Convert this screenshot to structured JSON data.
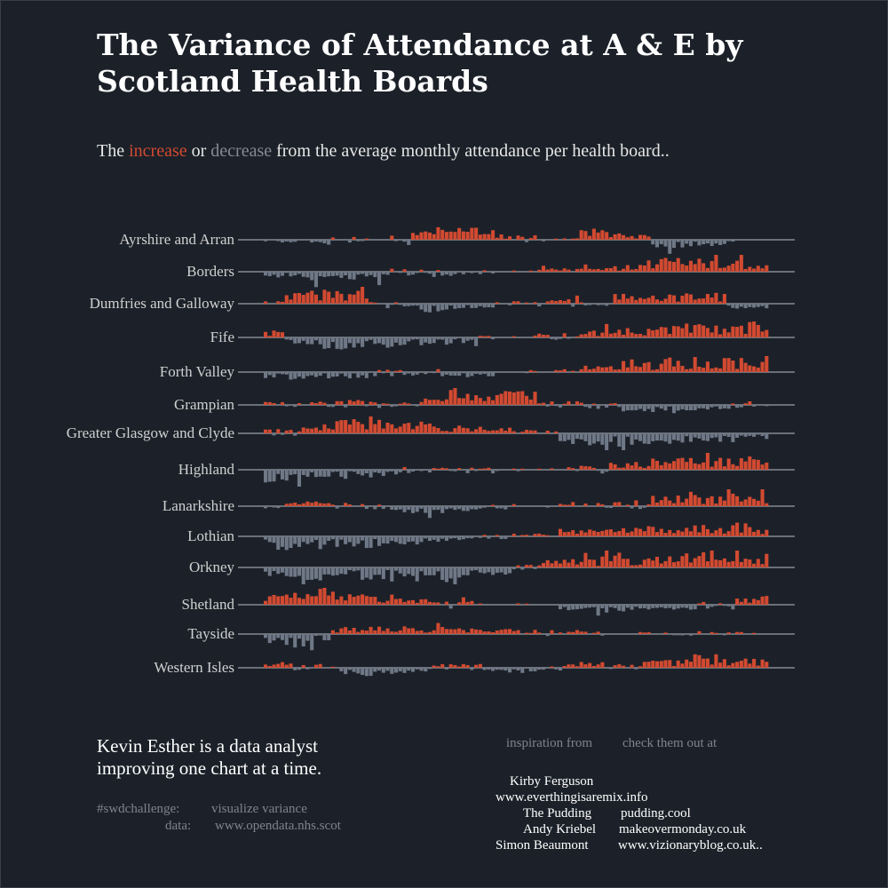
{
  "title": "The Variance of Attendance at A & E by\nScotland  Health Boards",
  "subtitle": {
    "pre": "The ",
    "increase": "increase",
    "mid": " or ",
    "decrease": "decrease",
    "post": " from the average monthly attendance per health board.."
  },
  "colors": {
    "background": "#1c2129",
    "increase": "#d24a31",
    "decrease": "#6f7886",
    "baseline": "#9aa0a8",
    "label": "#d0d0d0"
  },
  "chart_data": {
    "type": "bar",
    "layout": "small-multiples",
    "months": 120,
    "series": [
      {
        "name": "Ayrshire and Arran",
        "segments": [
          [
            10,
            -0.2
          ],
          [
            18,
            -0.35
          ],
          [
            25,
            -0.2
          ],
          [
            30,
            -0.05
          ],
          [
            36,
            0.35
          ],
          [
            55,
            0.9
          ],
          [
            65,
            0.35
          ],
          [
            75,
            0.2
          ],
          [
            82,
            0.8
          ],
          [
            92,
            0.45
          ],
          [
            102,
            -0.7
          ],
          [
            112,
            -0.45
          ],
          [
            120,
            0.05
          ]
        ]
      },
      {
        "name": "Borders",
        "segments": [
          [
            8,
            -0.45
          ],
          [
            20,
            -0.8
          ],
          [
            30,
            -0.55
          ],
          [
            45,
            -0.3
          ],
          [
            55,
            -0.2
          ],
          [
            65,
            0.1
          ],
          [
            80,
            0.3
          ],
          [
            88,
            0.4
          ],
          [
            95,
            1.0
          ],
          [
            110,
            1.2
          ],
          [
            120,
            0.8
          ]
        ]
      },
      {
        "name": "Dumfries and Galloway",
        "segments": [
          [
            5,
            0.25
          ],
          [
            18,
            0.95
          ],
          [
            25,
            0.75
          ],
          [
            35,
            -0.2
          ],
          [
            45,
            -0.7
          ],
          [
            55,
            -0.4
          ],
          [
            65,
            0.2
          ],
          [
            75,
            0.35
          ],
          [
            83,
            -0.15
          ],
          [
            92,
            0.7
          ],
          [
            110,
            0.8
          ],
          [
            120,
            -0.45
          ]
        ]
      },
      {
        "name": "Fife",
        "segments": [
          [
            5,
            0.55
          ],
          [
            12,
            -0.55
          ],
          [
            25,
            -0.95
          ],
          [
            35,
            -0.8
          ],
          [
            45,
            -0.55
          ],
          [
            55,
            -0.35
          ],
          [
            65,
            0.15
          ],
          [
            75,
            0.3
          ],
          [
            85,
            0.6
          ],
          [
            95,
            0.8
          ],
          [
            110,
            1.0
          ],
          [
            120,
            1.2
          ]
        ]
      },
      {
        "name": "Forth Valley",
        "segments": [
          [
            10,
            -0.55
          ],
          [
            25,
            -0.45
          ],
          [
            35,
            -0.3
          ],
          [
            45,
            -0.35
          ],
          [
            55,
            -0.4
          ],
          [
            62,
            0.05
          ],
          [
            75,
            0.15
          ],
          [
            85,
            0.45
          ],
          [
            95,
            0.8
          ],
          [
            110,
            1.1
          ],
          [
            120,
            1.2
          ]
        ]
      },
      {
        "name": "Grampian",
        "segments": [
          [
            10,
            0.25
          ],
          [
            20,
            0.3
          ],
          [
            30,
            0.35
          ],
          [
            38,
            0.25
          ],
          [
            45,
            0.6
          ],
          [
            55,
            0.8
          ],
          [
            65,
            1.0
          ],
          [
            75,
            0.3
          ],
          [
            85,
            -0.3
          ],
          [
            95,
            -0.55
          ],
          [
            110,
            -0.5
          ],
          [
            120,
            -0.3
          ]
        ]
      },
      {
        "name": "Greater Glasgow and Clyde",
        "segments": [
          [
            8,
            0.3
          ],
          [
            18,
            0.6
          ],
          [
            30,
            1.0
          ],
          [
            40,
            0.85
          ],
          [
            50,
            0.5
          ],
          [
            60,
            0.4
          ],
          [
            70,
            0.25
          ],
          [
            80,
            -0.9
          ],
          [
            90,
            -1.1
          ],
          [
            100,
            -0.85
          ],
          [
            110,
            -0.6
          ],
          [
            120,
            -0.4
          ]
        ]
      },
      {
        "name": "Highland",
        "segments": [
          [
            10,
            -0.95
          ],
          [
            20,
            -0.65
          ],
          [
            30,
            -0.55
          ],
          [
            42,
            -0.35
          ],
          [
            55,
            -0.25
          ],
          [
            65,
            -0.15
          ],
          [
            72,
            0.1
          ],
          [
            82,
            0.3
          ],
          [
            92,
            0.55
          ],
          [
            105,
            0.85
          ],
          [
            120,
            1.0
          ]
        ]
      },
      {
        "name": "Lanarkshire",
        "segments": [
          [
            10,
            0.25
          ],
          [
            20,
            0.35
          ],
          [
            30,
            -0.25
          ],
          [
            40,
            -0.55
          ],
          [
            50,
            -0.4
          ],
          [
            60,
            -0.25
          ],
          [
            70,
            -0.1
          ],
          [
            80,
            0.2
          ],
          [
            92,
            0.35
          ],
          [
            105,
            0.8
          ],
          [
            120,
            0.9
          ]
        ]
      },
      {
        "name": "Lothian",
        "segments": [
          [
            8,
            -1.0
          ],
          [
            18,
            -1.05
          ],
          [
            28,
            -0.85
          ],
          [
            38,
            -0.65
          ],
          [
            48,
            -0.45
          ],
          [
            58,
            -0.2
          ],
          [
            70,
            0.2
          ],
          [
            85,
            0.55
          ],
          [
            100,
            0.75
          ],
          [
            110,
            0.85
          ],
          [
            120,
            1.0
          ]
        ]
      },
      {
        "name": "Orkney",
        "segments": [
          [
            10,
            -1.05
          ],
          [
            20,
            -1.0
          ],
          [
            30,
            -0.9
          ],
          [
            40,
            -1.0
          ],
          [
            50,
            -1.1
          ],
          [
            60,
            -0.55
          ],
          [
            66,
            0.35
          ],
          [
            80,
            0.65
          ],
          [
            95,
            0.85
          ],
          [
            110,
            1.0
          ],
          [
            120,
            1.05
          ]
        ]
      },
      {
        "name": "Shetland",
        "segments": [
          [
            5,
            0.8
          ],
          [
            15,
            1.15
          ],
          [
            25,
            0.95
          ],
          [
            32,
            0.6
          ],
          [
            40,
            0.5
          ],
          [
            50,
            0.35
          ],
          [
            60,
            0.15
          ],
          [
            70,
            0.1
          ],
          [
            80,
            -0.45
          ],
          [
            90,
            -0.55
          ],
          [
            100,
            -0.4
          ],
          [
            112,
            -0.35
          ],
          [
            120,
            0.5
          ]
        ]
      },
      {
        "name": "Tayside",
        "segments": [
          [
            3,
            -0.7
          ],
          [
            12,
            -1.15
          ],
          [
            16,
            -0.5
          ],
          [
            25,
            0.5
          ],
          [
            35,
            0.55
          ],
          [
            45,
            0.6
          ],
          [
            55,
            0.5
          ],
          [
            65,
            0.35
          ],
          [
            75,
            0.3
          ],
          [
            85,
            0.2
          ],
          [
            95,
            0.15
          ],
          [
            105,
            0.2
          ],
          [
            120,
            0.15
          ]
        ]
      },
      {
        "name": "Western Isles",
        "segments": [
          [
            5,
            0.5
          ],
          [
            15,
            0.3
          ],
          [
            22,
            -0.3
          ],
          [
            30,
            -0.6
          ],
          [
            40,
            -0.45
          ],
          [
            52,
            0.3
          ],
          [
            62,
            -0.5
          ],
          [
            72,
            -0.3
          ],
          [
            80,
            0.4
          ],
          [
            90,
            0.25
          ],
          [
            100,
            0.6
          ],
          [
            110,
            1.05
          ],
          [
            120,
            0.7
          ]
        ]
      }
    ]
  },
  "bio": {
    "line1": "Kevin Esther is a data analyst",
    "line2": "improving one chart at a time."
  },
  "meta": {
    "swd_key": "#swdchallenge:",
    "swd_val": "visualize variance",
    "data_key": "data:",
    "data_val": "www.opendata.nhs.scot"
  },
  "credits": {
    "header_left": "inspiration from",
    "header_right": "check them out at",
    "people": [
      {
        "name": "Kirby Ferguson",
        "site": ""
      },
      {
        "name": "",
        "site": "www.everthingisaremix.info"
      },
      {
        "name": "The Pudding",
        "site": "pudding.cool"
      },
      {
        "name": "Andy Kriebel",
        "site": "makeovermonday.co.uk"
      },
      {
        "name": "Simon Beaumont",
        "site": "www.vizionaryblog.co.uk.."
      }
    ]
  }
}
